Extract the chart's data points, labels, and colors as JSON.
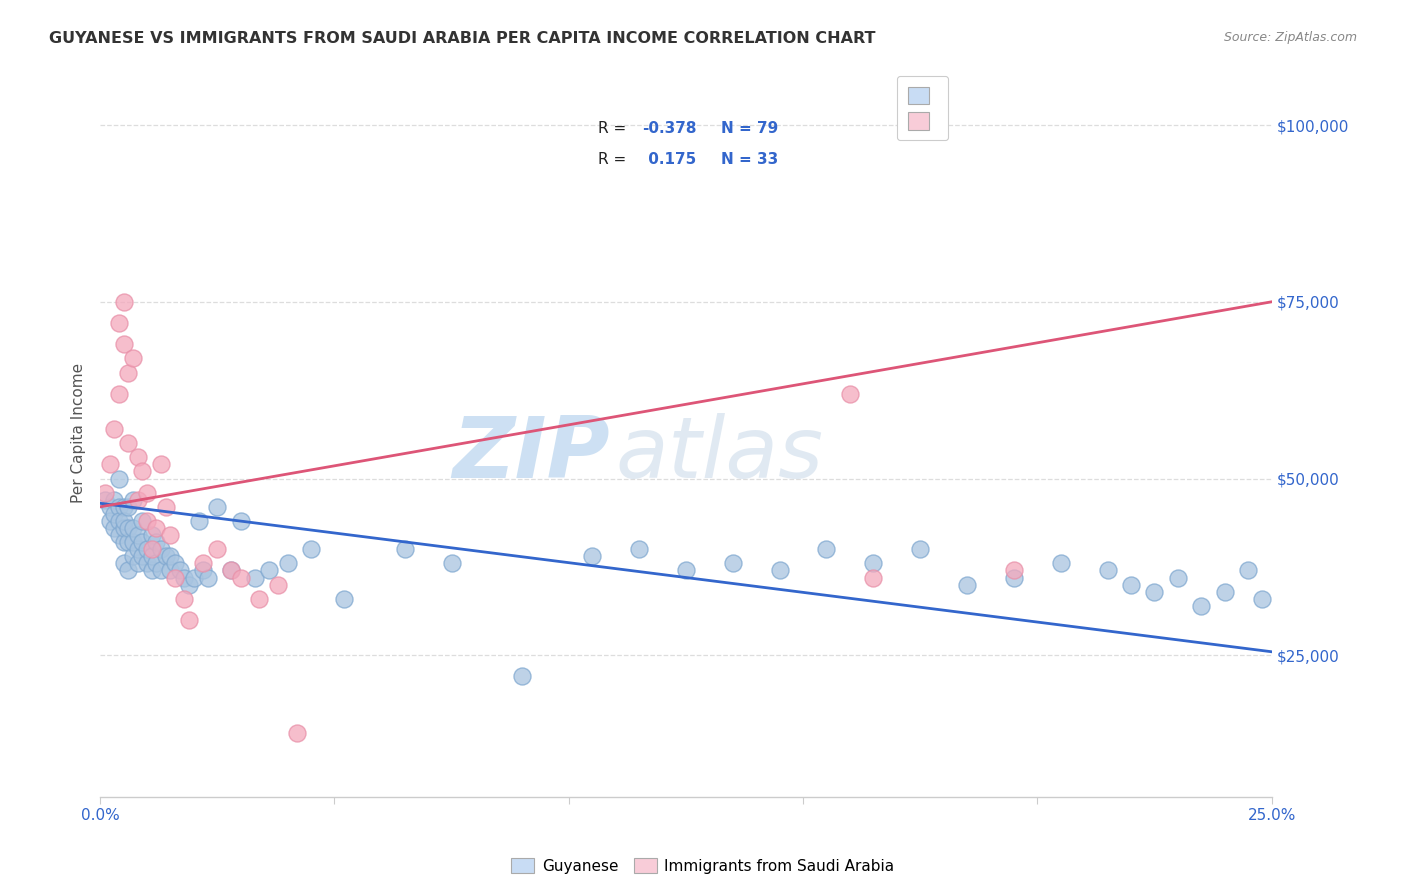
{
  "title": "GUYANESE VS IMMIGRANTS FROM SAUDI ARABIA PER CAPITA INCOME CORRELATION CHART",
  "source": "Source: ZipAtlas.com",
  "ylabel": "Per Capita Income",
  "watermark_zip": "ZIP",
  "watermark_atlas": "atlas",
  "yticks": [
    25000,
    50000,
    75000,
    100000
  ],
  "ytick_labels": [
    "$25,000",
    "$50,000",
    "$75,000",
    "$100,000"
  ],
  "xlim": [
    0.0,
    0.25
  ],
  "ylim": [
    5000,
    108000
  ],
  "blue_R": "-0.378",
  "blue_N": "79",
  "pink_R": "0.175",
  "pink_N": "33",
  "blue_color": "#a8c4e0",
  "pink_color": "#f4a8bc",
  "blue_edge_color": "#80a8d0",
  "pink_edge_color": "#e890a8",
  "blue_line_color": "#3366cc",
  "pink_line_color": "#dd5577",
  "legend_blue_face": "#c8dcf4",
  "legend_pink_face": "#f8ccd8",
  "blue_points_x": [
    0.001,
    0.002,
    0.002,
    0.003,
    0.003,
    0.003,
    0.004,
    0.004,
    0.004,
    0.004,
    0.005,
    0.005,
    0.005,
    0.005,
    0.005,
    0.006,
    0.006,
    0.006,
    0.006,
    0.007,
    0.007,
    0.007,
    0.007,
    0.008,
    0.008,
    0.008,
    0.009,
    0.009,
    0.009,
    0.01,
    0.01,
    0.011,
    0.011,
    0.011,
    0.012,
    0.012,
    0.013,
    0.013,
    0.014,
    0.015,
    0.015,
    0.016,
    0.017,
    0.018,
    0.019,
    0.02,
    0.021,
    0.022,
    0.023,
    0.025,
    0.028,
    0.03,
    0.033,
    0.036,
    0.04,
    0.045,
    0.052,
    0.065,
    0.075,
    0.09,
    0.105,
    0.115,
    0.125,
    0.135,
    0.145,
    0.155,
    0.165,
    0.175,
    0.185,
    0.195,
    0.205,
    0.215,
    0.22,
    0.225,
    0.23,
    0.235,
    0.24,
    0.245,
    0.248
  ],
  "blue_points_y": [
    47000,
    46000,
    44000,
    43000,
    47000,
    45000,
    46000,
    44000,
    42000,
    50000,
    41000,
    43000,
    46000,
    38000,
    44000,
    41000,
    43000,
    46000,
    37000,
    39000,
    41000,
    43000,
    47000,
    38000,
    40000,
    42000,
    39000,
    41000,
    44000,
    38000,
    40000,
    42000,
    37000,
    39000,
    38000,
    41000,
    37000,
    40000,
    39000,
    37000,
    39000,
    38000,
    37000,
    36000,
    35000,
    36000,
    44000,
    37000,
    36000,
    46000,
    37000,
    44000,
    36000,
    37000,
    38000,
    40000,
    33000,
    40000,
    38000,
    22000,
    39000,
    40000,
    37000,
    38000,
    37000,
    40000,
    38000,
    40000,
    35000,
    36000,
    38000,
    37000,
    35000,
    34000,
    36000,
    32000,
    34000,
    37000,
    33000
  ],
  "pink_points_x": [
    0.001,
    0.002,
    0.003,
    0.004,
    0.004,
    0.005,
    0.005,
    0.006,
    0.006,
    0.007,
    0.008,
    0.008,
    0.009,
    0.01,
    0.01,
    0.011,
    0.012,
    0.013,
    0.014,
    0.015,
    0.016,
    0.018,
    0.019,
    0.022,
    0.025,
    0.028,
    0.03,
    0.034,
    0.038,
    0.042,
    0.16,
    0.165,
    0.195
  ],
  "pink_points_y": [
    48000,
    52000,
    57000,
    62000,
    72000,
    69000,
    75000,
    55000,
    65000,
    67000,
    53000,
    47000,
    51000,
    44000,
    48000,
    40000,
    43000,
    52000,
    46000,
    42000,
    36000,
    33000,
    30000,
    38000,
    40000,
    37000,
    36000,
    33000,
    35000,
    14000,
    62000,
    36000,
    37000
  ],
  "blue_trend_x": [
    0.0,
    0.25
  ],
  "blue_trend_y": [
    46500,
    25500
  ],
  "pink_trend_x": [
    0.0,
    0.25
  ],
  "pink_trend_y": [
    46000,
    75000
  ],
  "background_color": "#ffffff",
  "grid_color": "#dddddd",
  "title_color": "#333333",
  "axis_label_color": "#555555",
  "ytick_color": "#3366cc",
  "source_color": "#888888"
}
